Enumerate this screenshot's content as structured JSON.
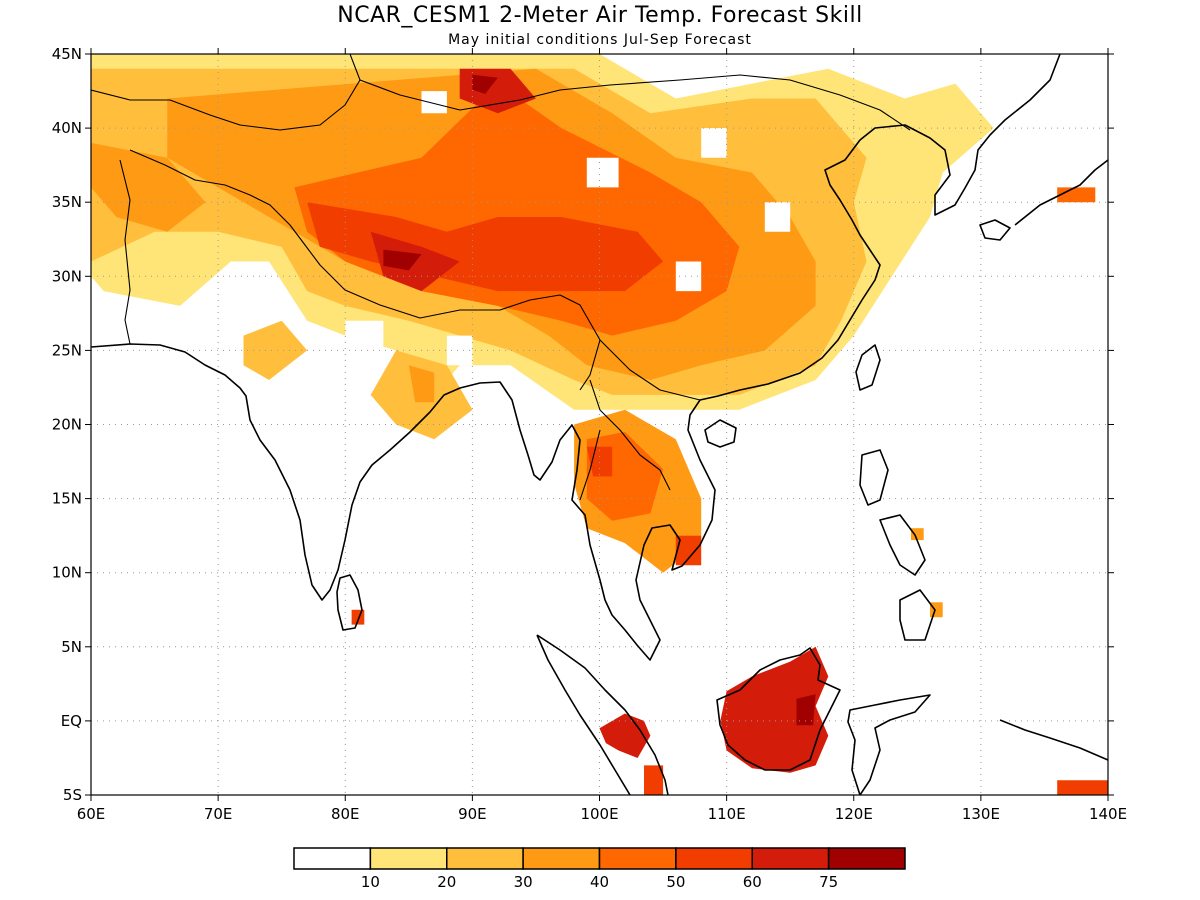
{
  "header": {
    "title": "NCAR_CESM1 2-Meter Air Temp. Forecast Skill",
    "subtitle": "May initial conditions  Jul-Sep Forecast"
  },
  "map": {
    "lon_range": [
      60,
      140
    ],
    "lat_range": [
      -5,
      45
    ],
    "lon_ticks": [
      {
        "value": 60,
        "label": "60E"
      },
      {
        "value": 70,
        "label": "70E"
      },
      {
        "value": 80,
        "label": "80E"
      },
      {
        "value": 90,
        "label": "90E"
      },
      {
        "value": 100,
        "label": "100E"
      },
      {
        "value": 110,
        "label": "110E"
      },
      {
        "value": 120,
        "label": "120E"
      },
      {
        "value": 130,
        "label": "130E"
      },
      {
        "value": 140,
        "label": "140E"
      }
    ],
    "lat_ticks": [
      {
        "value": 45,
        "label": "45N"
      },
      {
        "value": 40,
        "label": "40N"
      },
      {
        "value": 35,
        "label": "35N"
      },
      {
        "value": 30,
        "label": "30N"
      },
      {
        "value": 25,
        "label": "25N"
      },
      {
        "value": 20,
        "label": "20N"
      },
      {
        "value": 15,
        "label": "15N"
      },
      {
        "value": 10,
        "label": "10N"
      },
      {
        "value": 5,
        "label": "5N"
      },
      {
        "value": 0,
        "label": "EQ"
      },
      {
        "value": -5,
        "label": "5S"
      }
    ],
    "regions": [
      {
        "level": 1,
        "pts": [
          [
            60,
            45
          ],
          [
            100,
            45
          ],
          [
            106,
            42
          ],
          [
            112,
            43
          ],
          [
            118,
            44
          ],
          [
            124,
            42
          ],
          [
            128,
            43
          ],
          [
            131,
            40
          ],
          [
            127,
            37
          ],
          [
            126,
            34
          ],
          [
            123,
            30
          ],
          [
            120,
            26
          ],
          [
            117,
            23
          ],
          [
            111,
            21
          ],
          [
            107,
            21
          ],
          [
            104,
            21
          ],
          [
            98,
            21
          ],
          [
            93,
            24
          ],
          [
            89,
            24
          ],
          [
            86,
            21
          ],
          [
            84,
            25
          ],
          [
            80,
            26
          ],
          [
            77,
            27
          ],
          [
            74,
            31
          ],
          [
            71,
            31
          ],
          [
            67,
            28
          ],
          [
            61,
            29
          ],
          [
            60,
            30
          ]
        ]
      },
      {
        "level": 2,
        "pts": [
          [
            60,
            44
          ],
          [
            98,
            44
          ],
          [
            104,
            41
          ],
          [
            112,
            42
          ],
          [
            117,
            42
          ],
          [
            119,
            40
          ],
          [
            121,
            38
          ],
          [
            120,
            35
          ],
          [
            121,
            31
          ],
          [
            119,
            27
          ],
          [
            117,
            24
          ],
          [
            111,
            22
          ],
          [
            106,
            22
          ],
          [
            101,
            22
          ],
          [
            98,
            23
          ],
          [
            93,
            25
          ],
          [
            89,
            26
          ],
          [
            85,
            27
          ],
          [
            80,
            28
          ],
          [
            77,
            29
          ],
          [
            75,
            32
          ],
          [
            70,
            33
          ],
          [
            65,
            33
          ],
          [
            60,
            31
          ]
        ]
      },
      {
        "level": 3,
        "pts": [
          [
            66,
            42
          ],
          [
            95,
            44
          ],
          [
            101,
            41
          ],
          [
            106,
            38
          ],
          [
            112,
            37
          ],
          [
            115,
            34
          ],
          [
            117,
            31
          ],
          [
            117,
            28
          ],
          [
            113,
            25
          ],
          [
            108,
            24
          ],
          [
            104,
            23
          ],
          [
            99,
            24
          ],
          [
            96,
            26
          ],
          [
            92,
            28
          ],
          [
            86,
            29
          ],
          [
            80,
            31
          ],
          [
            76,
            33
          ],
          [
            70,
            36
          ],
          [
            66,
            38
          ]
        ]
      },
      {
        "level": 4,
        "pts": [
          [
            76,
            36
          ],
          [
            86,
            38
          ],
          [
            92,
            43
          ],
          [
            97,
            40
          ],
          [
            104,
            37
          ],
          [
            108,
            35
          ],
          [
            111,
            32
          ],
          [
            110,
            29
          ],
          [
            106,
            27
          ],
          [
            101,
            26
          ],
          [
            97,
            27
          ],
          [
            92,
            28
          ],
          [
            86,
            29
          ],
          [
            80,
            31
          ],
          [
            77,
            33
          ]
        ]
      },
      {
        "level": 5,
        "pts": [
          [
            77,
            35
          ],
          [
            84,
            34
          ],
          [
            88,
            33
          ],
          [
            92,
            34
          ],
          [
            97,
            34
          ],
          [
            103,
            33
          ],
          [
            105,
            31
          ],
          [
            102,
            29
          ],
          [
            97,
            29
          ],
          [
            92,
            29
          ],
          [
            87,
            30
          ],
          [
            82,
            31
          ],
          [
            78,
            32
          ]
        ]
      },
      {
        "level": 6,
        "pts": [
          [
            82,
            33
          ],
          [
            86,
            32
          ],
          [
            89,
            31
          ],
          [
            86,
            29
          ],
          [
            83,
            30
          ]
        ]
      },
      {
        "level": 6,
        "pts": [
          [
            89,
            44
          ],
          [
            93,
            44
          ],
          [
            95,
            42
          ],
          [
            92,
            41
          ],
          [
            89,
            42
          ]
        ]
      },
      {
        "level": 7,
        "pts": [
          [
            83,
            31.8
          ],
          [
            86,
            31.5
          ],
          [
            85,
            30.4
          ],
          [
            83,
            30.7
          ]
        ]
      },
      {
        "level": 7,
        "pts": [
          [
            90,
            43.6
          ],
          [
            92,
            43.4
          ],
          [
            91,
            42.3
          ],
          [
            90,
            42.6
          ]
        ]
      },
      {
        "level": 3,
        "pts": [
          [
            60,
            39
          ],
          [
            66,
            38
          ],
          [
            69,
            35
          ],
          [
            66,
            33
          ],
          [
            62,
            34
          ],
          [
            60,
            36
          ]
        ]
      },
      {
        "level": 3,
        "pts": [
          [
            98,
            20
          ],
          [
            102,
            21
          ],
          [
            106,
            19
          ],
          [
            108,
            15
          ],
          [
            108,
            12
          ],
          [
            105,
            10
          ],
          [
            102,
            12
          ],
          [
            99,
            13
          ],
          [
            98,
            16
          ]
        ]
      },
      {
        "level": 4,
        "pts": [
          [
            99,
            19
          ],
          [
            102,
            19.5
          ],
          [
            105,
            17
          ],
          [
            104,
            14
          ],
          [
            101,
            13.5
          ],
          [
            99,
            15
          ]
        ]
      },
      {
        "level": 5,
        "pts": [
          [
            99,
            18.5
          ],
          [
            101,
            18.5
          ],
          [
            101,
            16.5
          ],
          [
            99.5,
            16.5
          ]
        ]
      },
      {
        "level": 5,
        "pts": [
          [
            106,
            12.5
          ],
          [
            108,
            12.5
          ],
          [
            108,
            10.5
          ],
          [
            106,
            10.5
          ]
        ]
      },
      {
        "level": 2,
        "pts": [
          [
            84,
            25
          ],
          [
            88,
            24
          ],
          [
            90,
            21
          ],
          [
            87,
            19
          ],
          [
            84,
            20
          ],
          [
            82,
            22
          ]
        ]
      },
      {
        "level": 3,
        "pts": [
          [
            85,
            24
          ],
          [
            87,
            23.5
          ],
          [
            87,
            21.5
          ],
          [
            85.5,
            21.5
          ]
        ]
      },
      {
        "level": 2,
        "pts": [
          [
            72,
            26
          ],
          [
            75,
            27
          ],
          [
            77,
            25
          ],
          [
            74,
            23
          ],
          [
            72,
            24
          ]
        ]
      },
      {
        "level": 6,
        "pts": [
          [
            110,
            2
          ],
          [
            112,
            3
          ],
          [
            115,
            4
          ],
          [
            117,
            5
          ],
          [
            118,
            3
          ],
          [
            117,
            1
          ],
          [
            118,
            -1
          ],
          [
            117,
            -3
          ],
          [
            115,
            -3.5
          ],
          [
            112,
            -3.2
          ],
          [
            110,
            -2
          ],
          [
            109.5,
            0
          ]
        ]
      },
      {
        "level": 7,
        "pts": [
          [
            115.5,
            1.5
          ],
          [
            117,
            1.8
          ],
          [
            116.8,
            -0.3
          ],
          [
            115.5,
            -0.3
          ]
        ]
      },
      {
        "level": 6,
        "pts": [
          [
            100,
            -0.5
          ],
          [
            102,
            0.5
          ],
          [
            103.5,
            0
          ],
          [
            104,
            -1
          ],
          [
            103,
            -2.5
          ],
          [
            101.5,
            -2
          ],
          [
            100.5,
            -1.5
          ]
        ]
      },
      {
        "level": 5,
        "pts": [
          [
            103.5,
            -3
          ],
          [
            105,
            -3
          ],
          [
            105,
            -5
          ],
          [
            103.5,
            -5
          ]
        ]
      },
      {
        "level": 5,
        "pts": [
          [
            136,
            -4
          ],
          [
            140,
            -4
          ],
          [
            140,
            -5
          ],
          [
            136,
            -5
          ]
        ]
      },
      {
        "level": 5,
        "pts": [
          [
            80.5,
            7.5
          ],
          [
            81.5,
            7.5
          ],
          [
            81.5,
            6.5
          ],
          [
            80.5,
            6.5
          ]
        ]
      },
      {
        "level": 4,
        "pts": [
          [
            136,
            36
          ],
          [
            139,
            36
          ],
          [
            139,
            35
          ],
          [
            136,
            35
          ]
        ]
      },
      {
        "level": 3,
        "pts": [
          [
            124.5,
            13
          ],
          [
            125.5,
            13
          ],
          [
            125.5,
            12.2
          ],
          [
            124.5,
            12.2
          ]
        ]
      },
      {
        "level": 3,
        "pts": [
          [
            126,
            8
          ],
          [
            127,
            8
          ],
          [
            127,
            7
          ],
          [
            126,
            7
          ]
        ]
      },
      {
        "level": 0,
        "pts": [
          [
            86,
            42.5
          ],
          [
            88,
            42.5
          ],
          [
            88,
            41
          ],
          [
            86,
            41
          ]
        ]
      },
      {
        "level": 0,
        "pts": [
          [
            99,
            38
          ],
          [
            101.5,
            38
          ],
          [
            101.5,
            36
          ],
          [
            99,
            36
          ]
        ]
      },
      {
        "level": 0,
        "pts": [
          [
            108,
            40
          ],
          [
            110,
            40
          ],
          [
            110,
            38
          ],
          [
            108,
            38
          ]
        ]
      },
      {
        "level": 0,
        "pts": [
          [
            113,
            35
          ],
          [
            115,
            35
          ],
          [
            115,
            33
          ],
          [
            113,
            33
          ]
        ]
      },
      {
        "level": 0,
        "pts": [
          [
            106,
            31
          ],
          [
            108,
            31
          ],
          [
            108,
            29
          ],
          [
            106,
            29
          ]
        ]
      },
      {
        "level": 0,
        "pts": [
          [
            80,
            27
          ],
          [
            83,
            27
          ],
          [
            83,
            25
          ],
          [
            80,
            25
          ]
        ]
      },
      {
        "level": 0,
        "pts": [
          [
            88,
            26
          ],
          [
            90,
            26
          ],
          [
            90,
            24
          ],
          [
            88,
            24
          ]
        ]
      }
    ]
  },
  "colorbar": {
    "colors": [
      "#ffffff",
      "#ffe478",
      "#ffbe3c",
      "#ff9a14",
      "#ff6700",
      "#f13d00",
      "#d41c0a",
      "#a00000"
    ],
    "labels": [
      "10",
      "20",
      "30",
      "40",
      "50",
      "60",
      "75"
    ]
  }
}
